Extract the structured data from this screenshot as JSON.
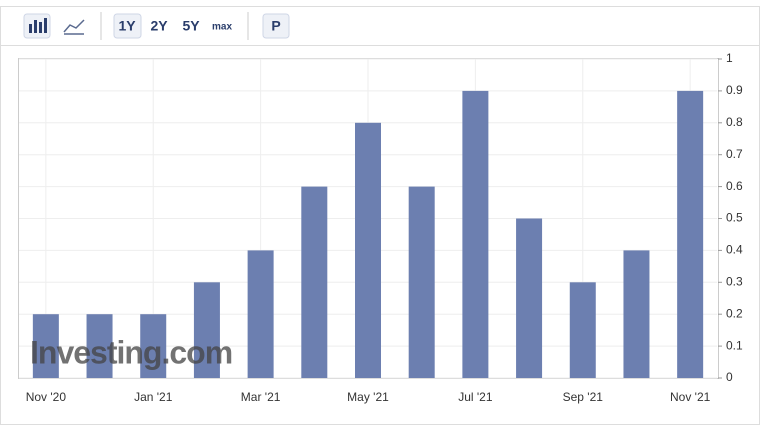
{
  "toolbar": {
    "periods": [
      "1Y",
      "2Y",
      "5Y",
      "max"
    ],
    "button": "P"
  },
  "watermark": "Investing.com",
  "chart_data": {
    "type": "bar",
    "categories": [
      "Nov '20",
      null,
      "Jan '21",
      null,
      "Mar '21",
      null,
      "May '21",
      null,
      "Jul '21",
      null,
      "Sep '21",
      null,
      "Nov '21"
    ],
    "values": [
      0.2,
      0.2,
      0.2,
      0.3,
      0.4,
      0.6,
      0.8,
      0.6,
      0.9,
      0.5,
      0.3,
      0.4,
      0.9
    ],
    "color": "#6c7fb0",
    "ylim": [
      0,
      1
    ],
    "yticks": [
      0,
      0.1,
      0.2,
      0.3,
      0.4,
      0.5,
      0.6,
      0.7,
      0.8,
      0.9,
      1
    ],
    "grid": true
  }
}
